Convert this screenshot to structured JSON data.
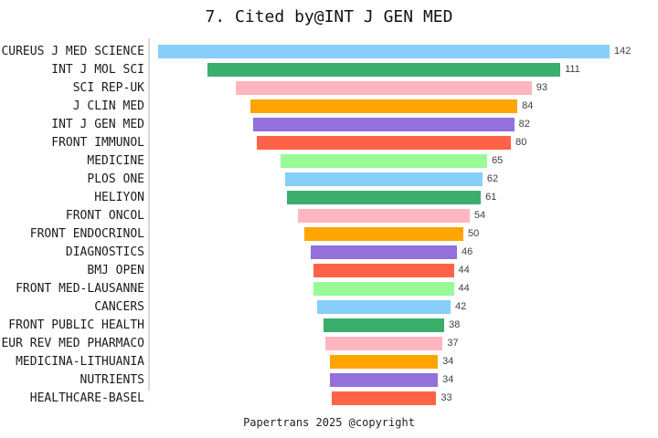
{
  "title": "7. Cited by@INT J GEN MED",
  "footer": "Papertrans 2025 @copyright",
  "colors": {
    "palette": [
      "#87CEFA",
      "#3BAE6C",
      "#FFB6C1",
      "#FFA500",
      "#9370DB",
      "#FF6347",
      "#98FB98"
    ],
    "axis_line": "#d8d8d8",
    "label_text": "#1a1a1a",
    "value_text": "#404040",
    "background": "#ffffff"
  },
  "chart_data": {
    "type": "bar",
    "orientation": "horizontal-centered-funnel",
    "title": "7. Cited by@INT J GEN MED",
    "categories": [
      "CUREUS J MED SCIENCE",
      "INT J MOL SCI",
      "SCI REP-UK",
      "J CLIN MED",
      "INT J GEN MED",
      "FRONT IMMUNOL",
      "MEDICINE",
      "PLOS ONE",
      "HELIYON",
      "FRONT ONCOL",
      "FRONT ENDOCRINOL",
      "DIAGNOSTICS",
      "BMJ OPEN",
      "FRONT MED-LAUSANNE",
      "CANCERS",
      "FRONT PUBLIC HEALTH",
      "EUR REV MED PHARMACO",
      "MEDICINA-LITHUANIA",
      "NUTRIENTS",
      "HEALTHCARE-BASEL"
    ],
    "values": [
      142,
      111,
      93,
      84,
      82,
      80,
      65,
      62,
      61,
      54,
      50,
      46,
      44,
      44,
      42,
      38,
      37,
      34,
      34,
      33
    ],
    "value_labels_shown": true,
    "max_value": 142,
    "legend": "none",
    "grid": "off",
    "footer": "Papertrans 2025 @copyright"
  }
}
